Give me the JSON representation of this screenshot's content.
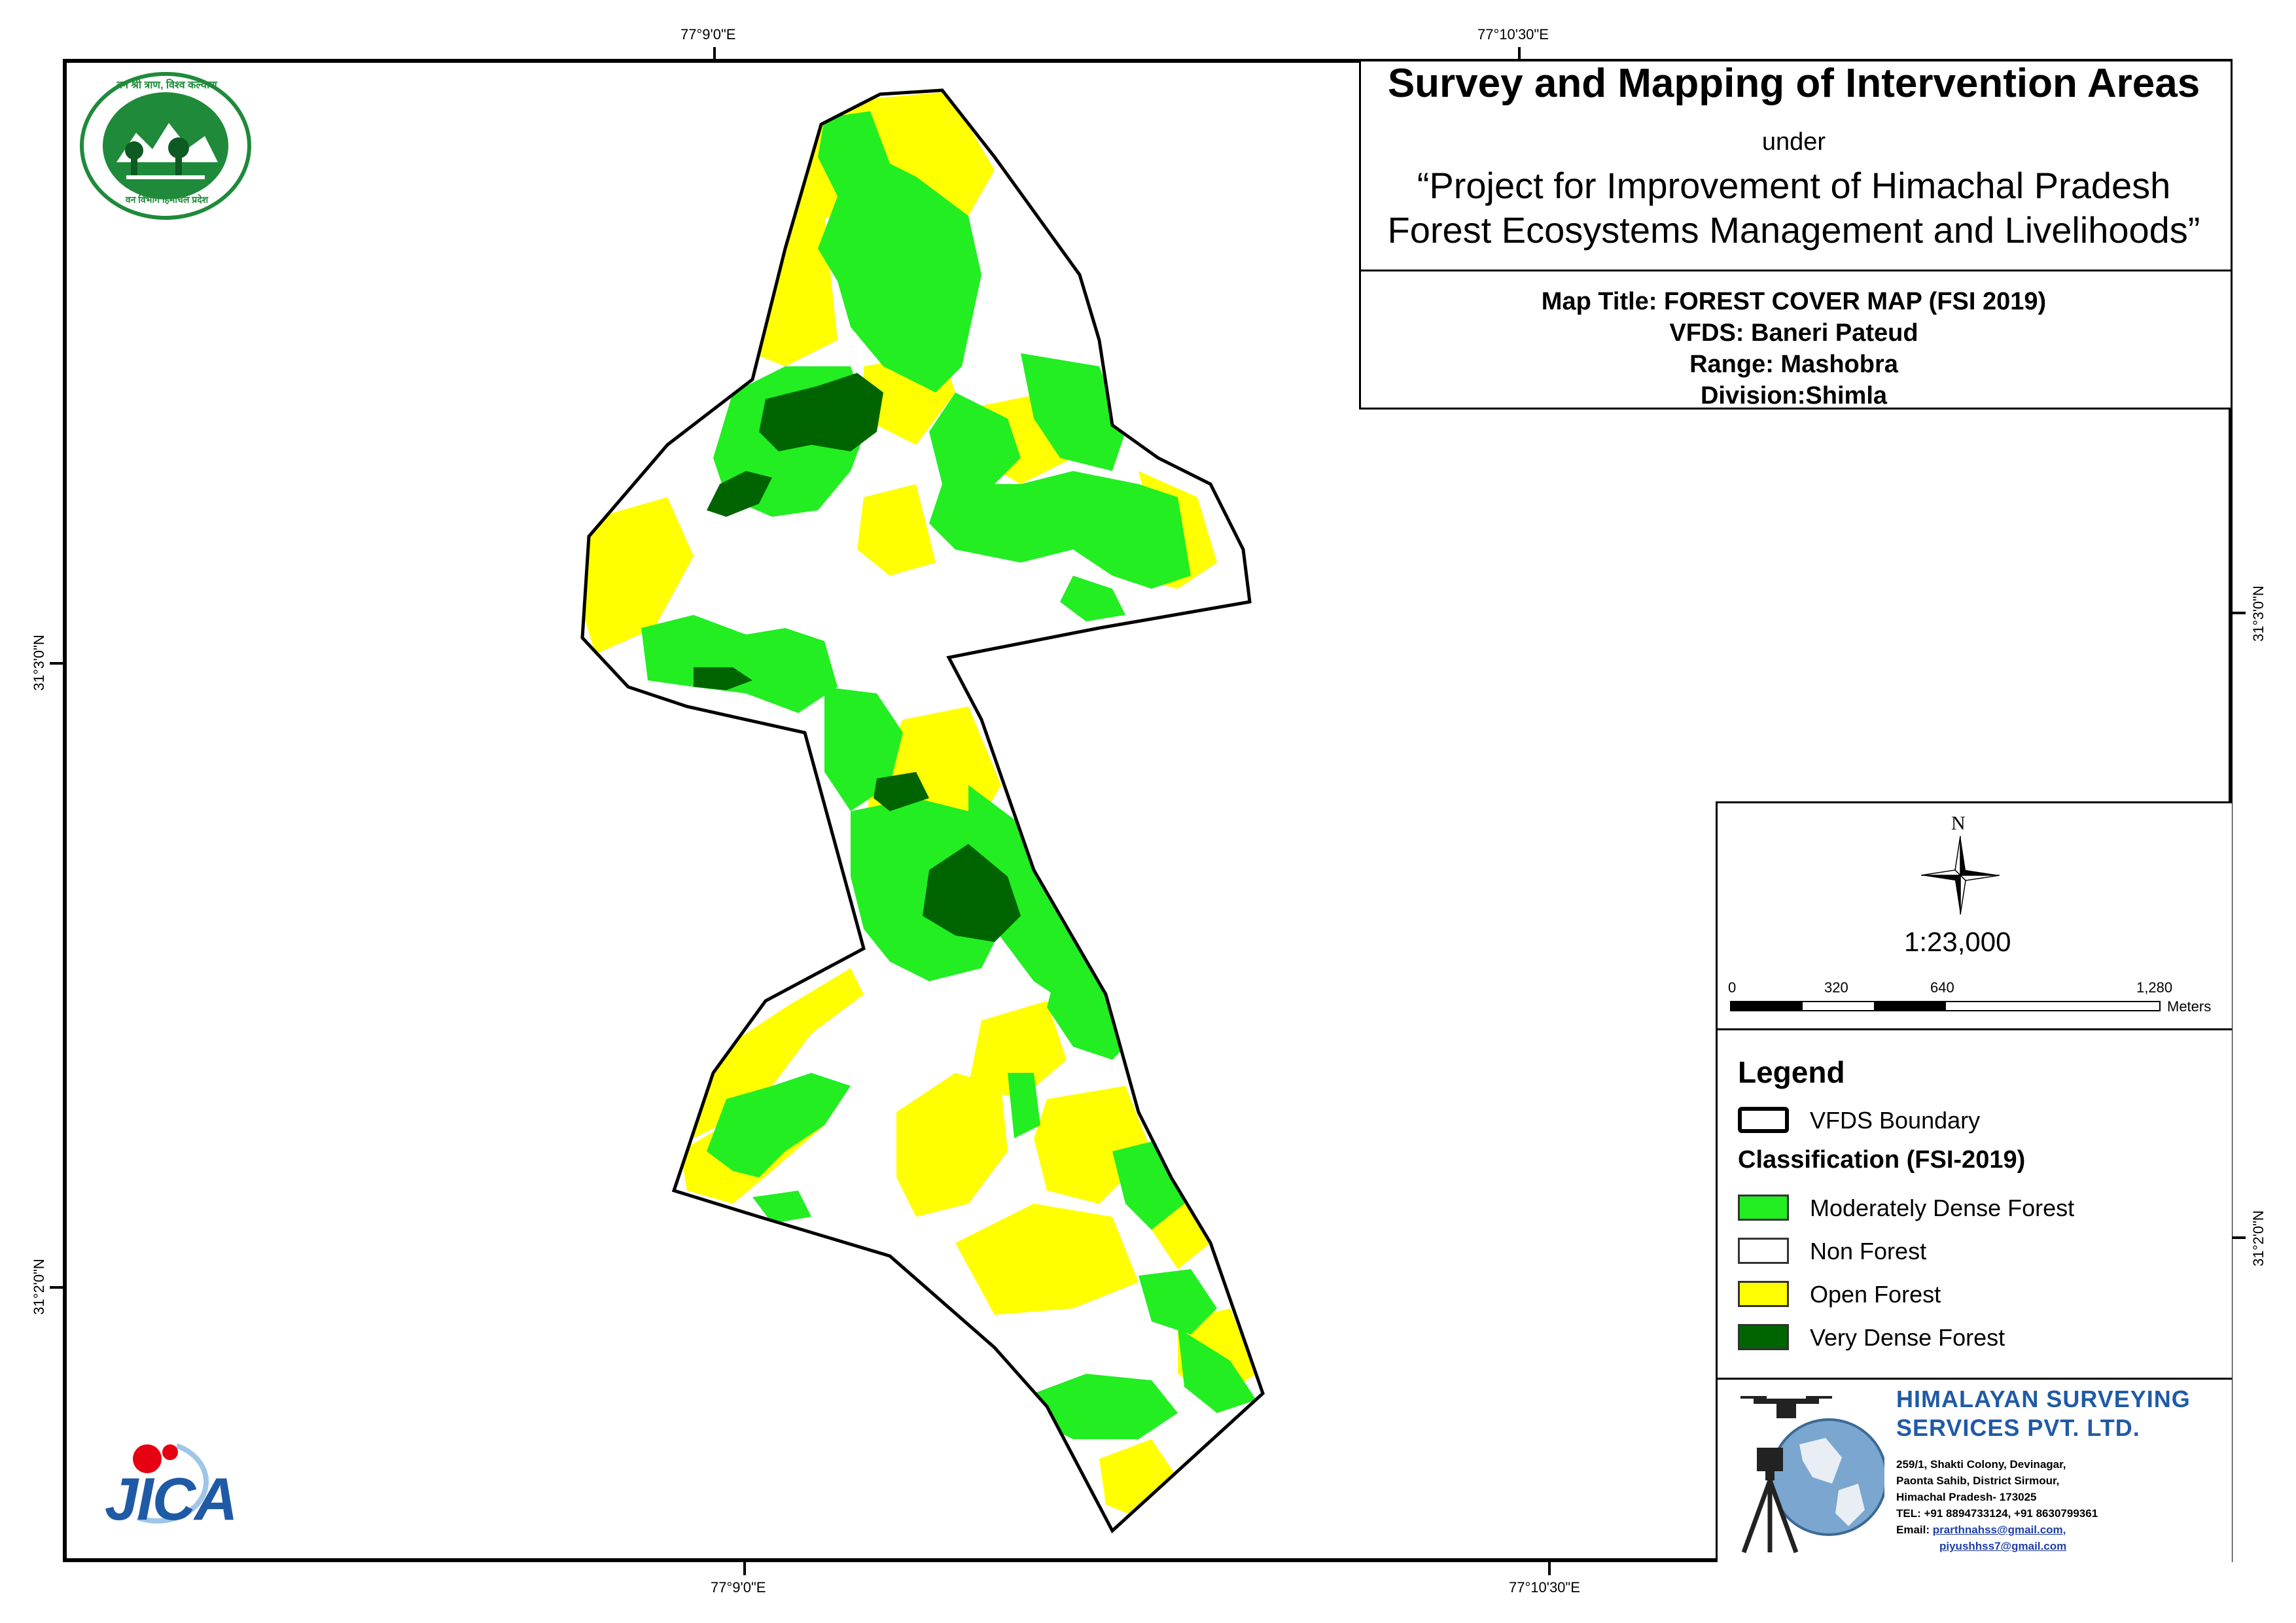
{
  "graticule": {
    "top": [
      "77°9'0\"E",
      "77°10'30\"E"
    ],
    "bottom": [
      "77°9'0\"E",
      "77°10'30\"E"
    ],
    "left": [
      "31°3'0\"N",
      "31°2'0\"N"
    ],
    "right": [
      "31°3'0\"N",
      "31°2'0\"N"
    ]
  },
  "title": {
    "main": "Survey and Mapping of Intervention Areas",
    "under": "under",
    "project_line1": "“Project for Improvement of Himachal Pradesh",
    "project_line2": "Forest Ecosystems Management and Livelihoods”",
    "map_title": "Map Title: FOREST COVER MAP (FSI 2019)",
    "vfds": "VFDS: Baneri Pateud",
    "range": "Range: Mashobra",
    "division": "Division:Shimla"
  },
  "north_arrow": {
    "label": "N"
  },
  "scale": {
    "ratio": "1:23,000",
    "ticks": [
      "0",
      "320",
      "640",
      "1,280"
    ],
    "unit": "Meters"
  },
  "legend": {
    "title": "Legend",
    "boundary_label": "VFDS Boundary",
    "classification_title": "Classification (FSI-2019)",
    "classes": [
      {
        "label": "Moderately Dense Forest",
        "color": "#22ee22"
      },
      {
        "label": "Non Forest",
        "color": "#ffffff"
      },
      {
        "label": "Open Forest",
        "color": "#ffff00"
      },
      {
        "label": "Very Dense Forest",
        "color": "#006400"
      }
    ]
  },
  "company": {
    "name_line1": "HIMALAYAN SURVEYING",
    "name_line2": "SERVICES PVT. LTD.",
    "address": [
      "259/1, Shakti Colony, Devinagar,",
      "Paonta Sahib, District Sirmour,",
      "Himachal Pradesh- 173025",
      "TEL: +91 8894733124, +91 8630799361"
    ],
    "email_label": "Email:",
    "email1": "prarthnahss@gmail.com,",
    "email2": "piyushhss7@gmail.com"
  },
  "logos": {
    "forest_dept_motto_top": "वन श्री त्राण, विश्व कल्याण",
    "forest_dept_motto_bottom": "वन विभाग हिमाचल प्रदेश",
    "jica": "JICA"
  },
  "colors": {
    "moderately_dense": "#22ee22",
    "open_forest": "#ffff00",
    "very_dense": "#006400",
    "non_forest": "#ffffff",
    "company_blue": "#1f5aa6",
    "logo_green": "#1f8a3a"
  }
}
